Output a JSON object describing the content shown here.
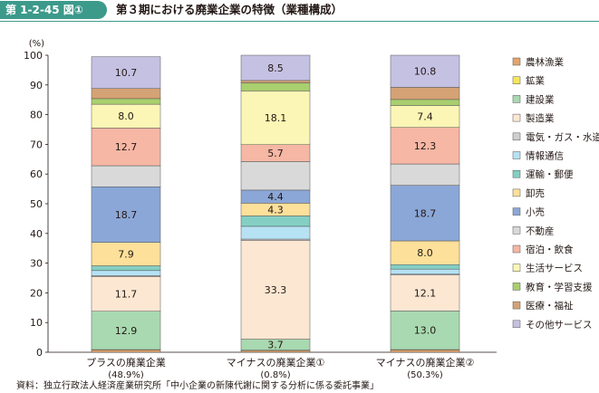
{
  "header": {
    "figure_label": "第 1-2-45 図①",
    "title": "第３期における廃業企業の特徴（業種構成）"
  },
  "source": "資料：独立行政法人経済産業研究所「中小企業の新陳代謝に関する分析に係る委託事業」",
  "colors": {
    "accent": "#3c9a8b",
    "農林漁業": "#e3a56c",
    "鉱業": "#f6e65a",
    "建設業": "#a8d9b0",
    "製造業": "#fce7d2",
    "電気・ガス・水道": "#cfcfcf",
    "情報通信": "#b6e2f4",
    "運輸・郵便": "#84cfc4",
    "卸売": "#fde09a",
    "小売": "#8ba7d7",
    "不動産": "#d9d9d9",
    "宿泊・飲食": "#f6b7a4",
    "生活サービス": "#fbf6b5",
    "教育・学習支援": "#a9cf6e",
    "医療・福祉": "#d4a274",
    "その他サービス": "#c5c1e3"
  },
  "chart_data": {
    "type": "bar",
    "stacked": true,
    "ylabel": "(%)",
    "ylim": [
      0,
      100
    ],
    "yticks": [
      0,
      10,
      20,
      30,
      40,
      50,
      60,
      70,
      80,
      90,
      100
    ],
    "categories": [
      {
        "name": "プラスの廃業企業",
        "share": "(48.9%)"
      },
      {
        "name": "マイナスの廃業企業①",
        "share": "(0.8%)"
      },
      {
        "name": "マイナスの廃業企業②",
        "share": "(50.3%)"
      }
    ],
    "legend_position": "right",
    "series": [
      {
        "name": "農林漁業",
        "values": [
          0.8,
          0.6,
          0.8
        ],
        "labels": [
          "",
          "",
          ""
        ]
      },
      {
        "name": "鉱業",
        "values": [
          0.1,
          0.1,
          0.1
        ],
        "labels": [
          "",
          "",
          ""
        ]
      },
      {
        "name": "建設業",
        "values": [
          12.9,
          3.7,
          13.0
        ],
        "labels": [
          "12.9",
          "3.7",
          "13.0"
        ]
      },
      {
        "name": "製造業",
        "values": [
          11.7,
          33.3,
          12.1
        ],
        "labels": [
          "11.7",
          "33.3",
          "12.1"
        ]
      },
      {
        "name": "電気・ガス・水道",
        "values": [
          0.3,
          0.4,
          0.3
        ],
        "labels": [
          "",
          "",
          ""
        ]
      },
      {
        "name": "情報通信",
        "values": [
          1.7,
          4.3,
          1.7
        ],
        "labels": [
          "",
          "",
          ""
        ]
      },
      {
        "name": "運輸・郵便",
        "values": [
          1.6,
          3.5,
          1.5
        ],
        "labels": [
          "",
          "",
          ""
        ]
      },
      {
        "name": "卸売",
        "values": [
          7.9,
          4.3,
          8.0
        ],
        "labels": [
          "7.9",
          "4.3",
          "8.0"
        ]
      },
      {
        "name": "小売",
        "values": [
          18.7,
          4.4,
          18.7
        ],
        "labels": [
          "18.7",
          "4.4",
          "18.7"
        ]
      },
      {
        "name": "不動産",
        "values": [
          7.1,
          9.6,
          7.2
        ],
        "labels": [
          "",
          "",
          ""
        ]
      },
      {
        "name": "宿泊・飲食",
        "values": [
          12.7,
          5.7,
          12.3
        ],
        "labels": [
          "12.7",
          "5.7",
          "12.3"
        ]
      },
      {
        "name": "生活サービス",
        "values": [
          8.0,
          18.1,
          7.4
        ],
        "labels": [
          "8.0",
          "18.1",
          "7.4"
        ]
      },
      {
        "name": "教育・学習支援",
        "values": [
          1.9,
          2.7,
          2.0
        ],
        "labels": [
          "",
          "",
          ""
        ]
      },
      {
        "name": "医療・福祉",
        "values": [
          3.4,
          0.8,
          4.1
        ],
        "labels": [
          "",
          "",
          ""
        ]
      },
      {
        "name": "その他サービス",
        "values": [
          10.7,
          8.5,
          10.8
        ],
        "labels": [
          "10.7",
          "8.5",
          "10.8"
        ]
      }
    ]
  }
}
